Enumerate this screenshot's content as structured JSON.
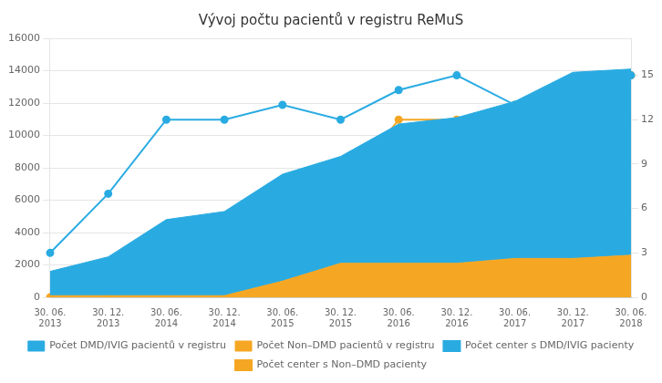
{
  "chart_data": {
    "type": "area",
    "title": "Vývoj počtu pacientů v registru ReMuS",
    "categories": [
      "30. 06.\n2013",
      "30. 12.\n2013",
      "30. 06.\n2014",
      "30. 12.\n2014",
      "30. 06.\n2015",
      "30. 12.\n2015",
      "30. 06.\n2016",
      "30. 12.\n2016",
      "30. 06.\n2017",
      "30. 12.\n2017",
      "30. 06.\n2018"
    ],
    "series": [
      {
        "name": "Počet DMD/IVIG pacientů v registru",
        "type": "area",
        "color": "#29ABE2",
        "values": [
          1500,
          2400,
          4700,
          5200,
          6600,
          6600,
          8600,
          9000,
          9700,
          11500,
          11500
        ]
      },
      {
        "name": "Počet Non–DMD pacientů v registru",
        "type": "area",
        "color": "#F5A623",
        "values": [
          100,
          100,
          100,
          100,
          1000,
          2100,
          2100,
          2100,
          2400,
          2400,
          2600
        ]
      },
      {
        "name": "Počet center s DMD/IVIG pacienty",
        "type": "line",
        "axis": "y2",
        "marker": "circle",
        "color": "#29ABE2",
        "values": [
          3,
          7,
          12,
          12,
          13,
          12,
          14,
          15,
          13,
          13,
          15
        ]
      },
      {
        "name": "Počet center s Non–DMD pacienty",
        "type": "line",
        "axis": "y2",
        "marker": "circle",
        "color": "#F5A623",
        "values": [
          0,
          0,
          0,
          0,
          3,
          7,
          12,
          12,
          13,
          13,
          15
        ]
      }
    ],
    "stacked": true,
    "ylim": [
      0,
      16000
    ],
    "yticks": [
      0,
      2000,
      4000,
      6000,
      8000,
      10000,
      12000,
      14000,
      16000
    ],
    "y2lim": [
      0,
      17.5
    ],
    "y2ticks": [
      0,
      3,
      6,
      9,
      12,
      15
    ],
    "grid": true,
    "legend": "bottom"
  }
}
